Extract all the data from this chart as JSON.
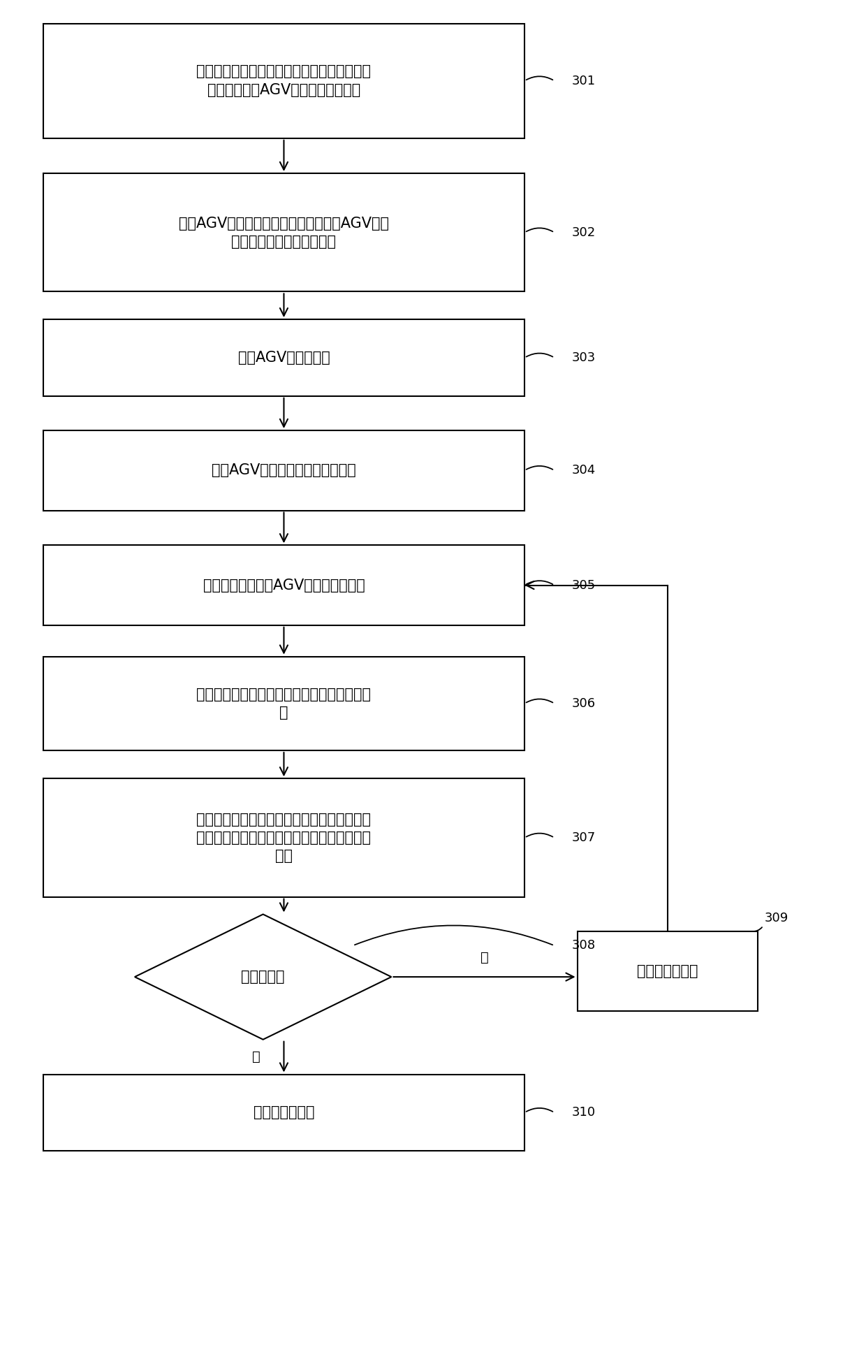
{
  "background_color": "#ffffff",
  "fig_width": 12.4,
  "fig_height": 19.35,
  "box_301_text": "根据订单所需的货物和货物摆放的储位确定与\n订单相关联的AGV需要经过的拣货点",
  "box_302_text": "根据AGV在各个拣货点需要的货物生成AGV针对\n各个拣货点的单拣货点订单",
  "box_303_text": "规划AGV的行进路线",
  "box_304_text": "驱动AGV按照行进路线前往拣货点",
  "box_305_text": "接收到达拣货点的AGV的单拣货点订单",
  "box_306_text": "将单拣货点订单推荐给不小于预定数量的拣货\n员",
  "box_307_text": "在存在拣货员领取单拣货点订单的情况下，将\n单拣货点订单设置为已分配状态以避免被重复\n领取",
  "box_308_text": "完成拣货？",
  "box_309_text": "前往下个拣货点",
  "box_310_text": "前往卸货点卸货",
  "label_301": "301",
  "label_302": "302",
  "label_303": "303",
  "label_304": "304",
  "label_305": "305",
  "label_306": "306",
  "label_307": "307",
  "label_308": "308",
  "label_309": "309",
  "label_310": "310",
  "yes_text": "是",
  "no_text": "否",
  "font_size": 15,
  "label_font_size": 13,
  "arrow_label_font_size": 14
}
